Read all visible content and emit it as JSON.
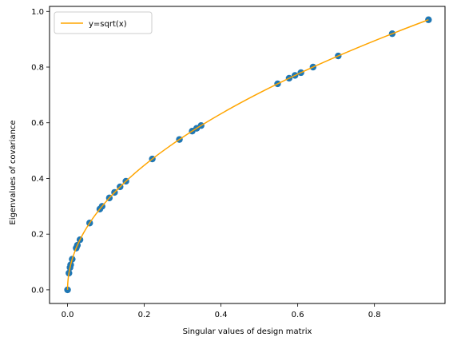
{
  "chart_data": {
    "type": "scatter",
    "xlabel": "Singular values of design matrix",
    "ylabel": "Eigenvalues of covariance",
    "xlim": [
      -0.047,
      0.984
    ],
    "ylim": [
      -0.049,
      1.018
    ],
    "xticks": [
      0.0,
      0.2,
      0.4,
      0.6,
      0.8
    ],
    "xtick_labels": [
      "0.0",
      "0.2",
      "0.4",
      "0.6",
      "0.8"
    ],
    "yticks": [
      0.0,
      0.2,
      0.4,
      0.6,
      0.8,
      1.0
    ],
    "ytick_labels": [
      "0.0",
      "0.2",
      "0.4",
      "0.6",
      "0.8",
      "1.0"
    ],
    "grid": false,
    "legend": {
      "position": "upper-left",
      "entries": [
        "y=sqrt(x)"
      ]
    },
    "series": [
      {
        "kind": "scatter",
        "color": "#1f77b4",
        "points": [
          [
            0.0,
            0.0
          ],
          [
            0.0036,
            0.06
          ],
          [
            0.0064,
            0.08
          ],
          [
            0.0081,
            0.09
          ],
          [
            0.0121,
            0.11
          ],
          [
            0.0225,
            0.15
          ],
          [
            0.0256,
            0.16
          ],
          [
            0.0324,
            0.18
          ],
          [
            0.0576,
            0.24
          ],
          [
            0.0841,
            0.29
          ],
          [
            0.09,
            0.3
          ],
          [
            0.1089,
            0.33
          ],
          [
            0.1225,
            0.35
          ],
          [
            0.1369,
            0.37
          ],
          [
            0.1521,
            0.39
          ],
          [
            0.2209,
            0.47
          ],
          [
            0.2916,
            0.54
          ],
          [
            0.3249,
            0.57
          ],
          [
            0.3364,
            0.58
          ],
          [
            0.3481,
            0.59
          ],
          [
            0.5476,
            0.74
          ],
          [
            0.5776,
            0.76
          ],
          [
            0.5929,
            0.77
          ],
          [
            0.6084,
            0.78
          ],
          [
            0.64,
            0.8
          ],
          [
            0.7056,
            0.84
          ],
          [
            0.8464,
            0.92
          ],
          [
            0.9409,
            0.97
          ]
        ]
      },
      {
        "kind": "line",
        "name": "y=sqrt(x)",
        "color": "#ffa500",
        "function": "sqrt",
        "x_range": [
          0.0,
          0.9409
        ]
      }
    ]
  }
}
